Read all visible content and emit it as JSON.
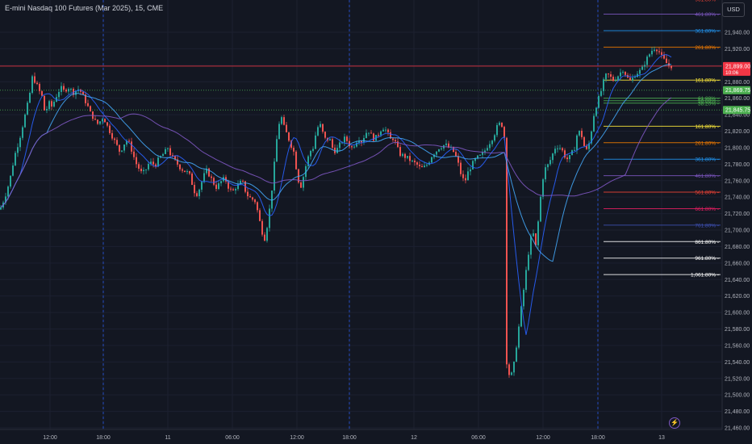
{
  "header": {
    "symbol_title": "E-mini Nasdaq 100 Futures (Mar 2025), 15, CME",
    "currency_button": "USD"
  },
  "footer": {
    "bolt_icon": "lightning-icon"
  },
  "colors": {
    "background": "#131722",
    "up_candle": "#26a69a",
    "down_candle": "#ef5350",
    "grid": "#1e222d",
    "axis_text": "#b2b5be",
    "session_line": "#2962ff"
  },
  "chart_data": {
    "type": "candlestick",
    "title": "E-mini Nasdaq 100 Futures (Mar 2025), 15, CME",
    "ylim": [
      21450,
      21970
    ],
    "y_ticks": [
      21940,
      21920,
      21900,
      21880,
      21860,
      21840,
      21820,
      21800,
      21780,
      21760,
      21740,
      21720,
      21700,
      21680,
      21660,
      21640,
      21620,
      21600,
      21580,
      21560,
      21540,
      21520,
      21500,
      21480,
      21460
    ],
    "x_ticks": [
      "12:00",
      "18:00",
      "11",
      "06:00",
      "12:00",
      "18:00",
      "12",
      "06:00",
      "12:00",
      "18:00",
      "13"
    ],
    "session_breaks": [
      "18:00",
      "18:00",
      "18:00"
    ],
    "price_path": [
      [
        0,
        21725
      ],
      [
        6,
        21740
      ],
      [
        12,
        21760
      ],
      [
        18,
        21790
      ],
      [
        24,
        21810
      ],
      [
        30,
        21835
      ],
      [
        36,
        21860
      ],
      [
        40,
        21885
      ],
      [
        44,
        21880
      ],
      [
        48,
        21870
      ],
      [
        52,
        21862
      ],
      [
        56,
        21840
      ],
      [
        60,
        21855
      ],
      [
        64,
        21850
      ],
      [
        68,
        21858
      ],
      [
        72,
        21868
      ],
      [
        76,
        21872
      ],
      [
        80,
        21868
      ],
      [
        84,
        21874
      ],
      [
        88,
        21870
      ],
      [
        92,
        21866
      ],
      [
        96,
        21872
      ],
      [
        100,
        21868
      ],
      [
        104,
        21860
      ],
      [
        108,
        21852
      ],
      [
        112,
        21842
      ],
      [
        116,
        21836
      ],
      [
        120,
        21828
      ],
      [
        124,
        21832
      ],
      [
        128,
        21838
      ],
      [
        132,
        21828
      ],
      [
        136,
        21820
      ],
      [
        140,
        21812
      ],
      [
        144,
        21804
      ],
      [
        148,
        21796
      ],
      [
        152,
        21800
      ],
      [
        156,
        21810
      ],
      [
        160,
        21805
      ],
      [
        164,
        21795
      ],
      [
        168,
        21782
      ],
      [
        172,
        21775
      ],
      [
        176,
        21768
      ],
      [
        180,
        21772
      ],
      [
        184,
        21780
      ],
      [
        188,
        21782
      ],
      [
        192,
        21778
      ],
      [
        196,
        21785
      ],
      [
        200,
        21790
      ],
      [
        204,
        21794
      ],
      [
        208,
        21800
      ],
      [
        212,
        21790
      ],
      [
        216,
        21785
      ],
      [
        220,
        21780
      ],
      [
        224,
        21775
      ],
      [
        228,
        21772
      ],
      [
        232,
        21770
      ],
      [
        236,
        21765
      ],
      [
        240,
        21748
      ],
      [
        244,
        21744
      ],
      [
        248,
        21752
      ],
      [
        252,
        21765
      ],
      [
        256,
        21772
      ],
      [
        260,
        21766
      ],
      [
        264,
        21758
      ],
      [
        268,
        21752
      ],
      [
        272,
        21756
      ],
      [
        276,
        21762
      ],
      [
        280,
        21760
      ],
      [
        284,
        21750
      ],
      [
        288,
        21746
      ],
      [
        292,
        21752
      ],
      [
        296,
        21755
      ],
      [
        300,
        21760
      ],
      [
        304,
        21748
      ],
      [
        308,
        21740
      ],
      [
        312,
        21738
      ],
      [
        316,
        21735
      ],
      [
        320,
        21720
      ],
      [
        324,
        21700
      ],
      [
        328,
        21690
      ],
      [
        332,
        21710
      ],
      [
        336,
        21740
      ],
      [
        340,
        21780
      ],
      [
        344,
        21820
      ],
      [
        348,
        21840
      ],
      [
        352,
        21825
      ],
      [
        356,
        21815
      ],
      [
        360,
        21805
      ],
      [
        364,
        21795
      ],
      [
        368,
        21770
      ],
      [
        372,
        21750
      ],
      [
        376,
        21765
      ],
      [
        380,
        21782
      ],
      [
        384,
        21795
      ],
      [
        388,
        21800
      ],
      [
        392,
        21820
      ],
      [
        396,
        21830
      ],
      [
        400,
        21818
      ],
      [
        404,
        21808
      ],
      [
        408,
        21812
      ],
      [
        412,
        21800
      ],
      [
        416,
        21795
      ],
      [
        420,
        21802
      ],
      [
        424,
        21808
      ],
      [
        428,
        21812
      ],
      [
        432,
        21805
      ],
      [
        436,
        21800
      ],
      [
        440,
        21805
      ],
      [
        444,
        21812
      ],
      [
        448,
        21808
      ],
      [
        452,
        21815
      ],
      [
        456,
        21822
      ],
      [
        460,
        21815
      ],
      [
        464,
        21810
      ],
      [
        468,
        21815
      ],
      [
        472,
        21822
      ],
      [
        476,
        21825
      ],
      [
        480,
        21818
      ],
      [
        484,
        21810
      ],
      [
        488,
        21812
      ],
      [
        492,
        21800
      ],
      [
        496,
        21792
      ],
      [
        500,
        21790
      ],
      [
        504,
        21788
      ],
      [
        508,
        21785
      ],
      [
        512,
        21782
      ],
      [
        516,
        21780
      ],
      [
        520,
        21776
      ],
      [
        524,
        21775
      ],
      [
        528,
        21778
      ],
      [
        532,
        21784
      ],
      [
        536,
        21792
      ],
      [
        540,
        21795
      ],
      [
        544,
        21800
      ],
      [
        548,
        21802
      ],
      [
        552,
        21804
      ],
      [
        556,
        21800
      ],
      [
        560,
        21798
      ],
      [
        564,
        21792
      ],
      [
        568,
        21780
      ],
      [
        572,
        21765
      ],
      [
        576,
        21758
      ],
      [
        580,
        21770
      ],
      [
        584,
        21778
      ],
      [
        588,
        21784
      ],
      [
        592,
        21788
      ],
      [
        596,
        21790
      ],
      [
        600,
        21795
      ],
      [
        604,
        21802
      ],
      [
        608,
        21808
      ],
      [
        612,
        21815
      ],
      [
        616,
        21825
      ],
      [
        620,
        21830
      ],
      [
        624,
        21825
      ],
      [
        626,
        21800
      ],
      [
        628,
        21540
      ],
      [
        632,
        21520
      ],
      [
        636,
        21530
      ],
      [
        640,
        21560
      ],
      [
        644,
        21590
      ],
      [
        648,
        21620
      ],
      [
        652,
        21650
      ],
      [
        656,
        21680
      ],
      [
        660,
        21700
      ],
      [
        664,
        21680
      ],
      [
        668,
        21720
      ],
      [
        672,
        21760
      ],
      [
        676,
        21775
      ],
      [
        680,
        21780
      ],
      [
        684,
        21790
      ],
      [
        688,
        21800
      ],
      [
        692,
        21802
      ],
      [
        696,
        21798
      ],
      [
        700,
        21790
      ],
      [
        704,
        21785
      ],
      [
        708,
        21792
      ],
      [
        712,
        21800
      ],
      [
        716,
        21820
      ],
      [
        720,
        21818
      ],
      [
        724,
        21802
      ],
      [
        728,
        21795
      ],
      [
        732,
        21815
      ],
      [
        736,
        21840
      ],
      [
        740,
        21855
      ],
      [
        744,
        21865
      ],
      [
        748,
        21880
      ],
      [
        752,
        21890
      ],
      [
        756,
        21886
      ],
      [
        760,
        21882
      ],
      [
        764,
        21885
      ],
      [
        768,
        21890
      ],
      [
        772,
        21895
      ],
      [
        776,
        21888
      ],
      [
        780,
        21880
      ],
      [
        784,
        21884
      ],
      [
        788,
        21890
      ],
      [
        792,
        21892
      ],
      [
        796,
        21896
      ],
      [
        800,
        21905
      ],
      [
        804,
        21912
      ],
      [
        808,
        21918
      ],
      [
        812,
        21922
      ],
      [
        816,
        21918
      ],
      [
        820,
        21910
      ],
      [
        824,
        21905
      ],
      [
        828,
        21900
      ],
      [
        832,
        21899
      ]
    ],
    "moving_averages": [
      {
        "color": "#2962ff",
        "window": 9
      },
      {
        "color": "#42a5f5",
        "window": 20
      },
      {
        "color": "#7e57c2",
        "window": 50
      }
    ],
    "horizontal_levels": [
      {
        "price": 21899,
        "color": "#f23645",
        "style": "solid"
      },
      {
        "price": 21869.75,
        "color": "#4caf50",
        "style": "dotted"
      },
      {
        "price": 21845.75,
        "color": "#4caf50",
        "style": "dotted"
      }
    ],
    "price_labels": [
      {
        "text": "21,899.00",
        "sub": "10:06",
        "price": 21899,
        "bg": "#f23645"
      },
      {
        "text": "21,869.75",
        "price": 21869.75,
        "bg": "#4caf50"
      },
      {
        "text": "21,845.75",
        "price": 21845.75,
        "bg": "#4caf50"
      }
    ],
    "fib_upper": [
      {
        "label": "961.80%",
        "price": 21980,
        "color": "#f44336"
      },
      {
        "label": "461.80%",
        "price": 21962,
        "color": "#7e57c2"
      },
      {
        "label": "361.80%",
        "price": 21942,
        "color": "#2196f3"
      },
      {
        "label": "261.80%",
        "price": 21922,
        "color": "#f57c00"
      },
      {
        "label": "161.80%",
        "price": 21882,
        "color": "#ffeb3b"
      },
      {
        "label": "61.80%",
        "price": 21860,
        "color": "#4caf50"
      },
      {
        "label": "50.00%",
        "price": 21857,
        "color": "#4caf50"
      },
      {
        "label": "38.20%",
        "price": 21854,
        "color": "#4caf50"
      }
    ],
    "fib_lower": [
      {
        "label": "161.80%",
        "price": 21826,
        "color": "#ffeb3b"
      },
      {
        "label": "261.80%",
        "price": 21806,
        "color": "#f57c00"
      },
      {
        "label": "361.80%",
        "price": 21786,
        "color": "#2196f3"
      },
      {
        "label": "461.80%",
        "price": 21766,
        "color": "#7e57c2"
      },
      {
        "label": "561.80%",
        "price": 21746,
        "color": "#f44336"
      },
      {
        "label": "661.80%",
        "price": 21726,
        "color": "#e91e63"
      },
      {
        "label": "761.80%",
        "price": 21706,
        "color": "#3f51b5"
      },
      {
        "label": "861.80%",
        "price": 21686,
        "color": "#ffffff"
      },
      {
        "label": "961.80%",
        "price": 21666,
        "color": "#ffffff"
      },
      {
        "label": "1,061.80%",
        "price": 21646,
        "color": "#ffffff"
      }
    ]
  }
}
